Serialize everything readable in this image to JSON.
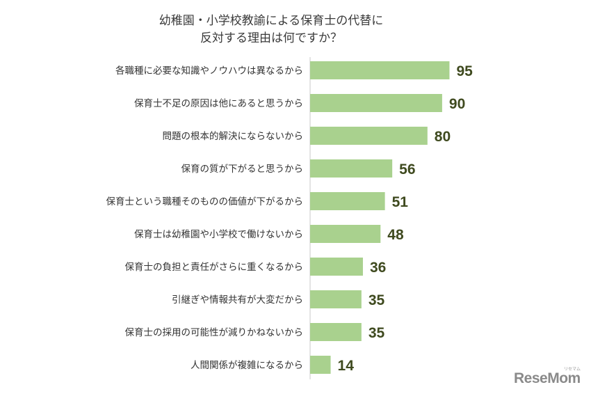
{
  "chart_data": {
    "type": "bar",
    "orientation": "horizontal",
    "title_lines": [
      "幼稚園・小学校教諭による保育士の代替に",
      "反対する理由は何ですか？"
    ],
    "categories": [
      "各職種に必要な知識やノウハウは異なるから",
      "保育士不足の原因は他にあると思うから",
      "問題の根本的解決にならないから",
      "保育の質が下がると思うから",
      "保育士という職種そのものの価値が下がるから",
      "保育士は幼稚園や小学校で働けないから",
      "保育士の負担と責任がさらに重くなるから",
      "引継ぎや情報共有が大変だから",
      "保育士の採用の可能性が減りかねないから",
      "人間関係が複雑になるから"
    ],
    "values": [
      95,
      90,
      80,
      56,
      51,
      48,
      36,
      35,
      35,
      14
    ],
    "xlim": [
      0,
      100
    ],
    "grid": false,
    "legend": "none",
    "bar_color": "#a9d18e",
    "label_color": "#3f4a1f"
  },
  "watermark": {
    "text": "ReseMom",
    "sub": "リセマム"
  }
}
